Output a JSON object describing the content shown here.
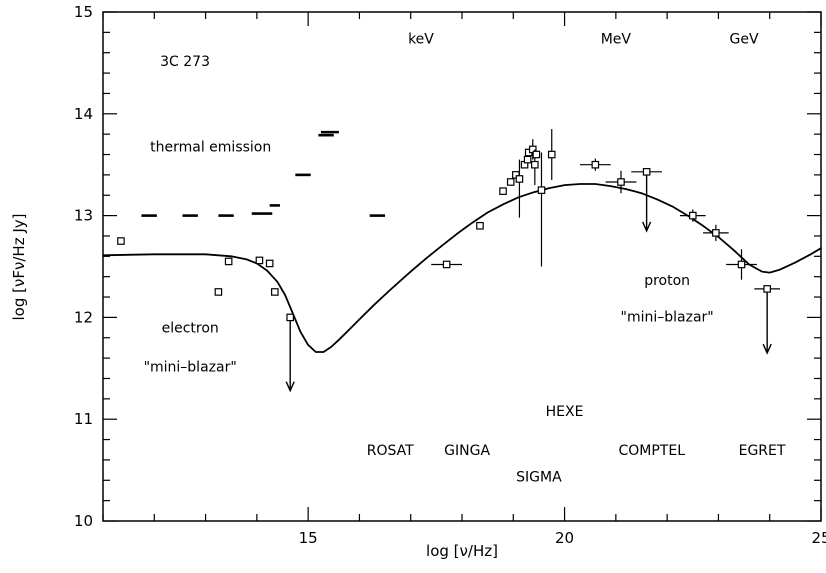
{
  "chart_data": {
    "type": "scatter",
    "xlabel": "log [ν/Hz]",
    "ylabel": "log [νFν/Hz Jy]",
    "xlim": [
      11,
      25
    ],
    "ylim": [
      10,
      15
    ],
    "x_ticks": [
      15,
      20,
      25
    ],
    "y_ticks": [
      10,
      11,
      12,
      13,
      14,
      15
    ],
    "x_tick_labels": [
      "15",
      "20",
      "25"
    ],
    "y_tick_labels": [
      "10",
      "11",
      "12",
      "13",
      "14",
      "15"
    ],
    "grid": false,
    "annotations": [
      {
        "text": "3C 273",
        "x": 12.6,
        "y": 14.47
      },
      {
        "text": "thermal emission",
        "x": 13.1,
        "y": 13.63
      },
      {
        "text": "electron",
        "x": 12.7,
        "y": 11.85
      },
      {
        "text": "\"mini–blazar\"",
        "x": 12.7,
        "y": 11.47
      },
      {
        "text": "proton",
        "x": 22.0,
        "y": 12.32
      },
      {
        "text": "\"mini–blazar\"",
        "x": 22.0,
        "y": 11.96
      },
      {
        "text": "keV",
        "x": 17.2,
        "y": 14.69
      },
      {
        "text": "MeV",
        "x": 21.0,
        "y": 14.69
      },
      {
        "text": "GeV",
        "x": 23.5,
        "y": 14.69
      },
      {
        "text": "HEXE",
        "x": 20.0,
        "y": 11.03
      },
      {
        "text": "ROSAT",
        "x": 16.6,
        "y": 10.65
      },
      {
        "text": "GINGA",
        "x": 18.1,
        "y": 10.65
      },
      {
        "text": "COMPTEL",
        "x": 21.7,
        "y": 10.65
      },
      {
        "text": "EGRET",
        "x": 23.85,
        "y": 10.65
      },
      {
        "text": "SIGMA",
        "x": 19.5,
        "y": 10.39
      }
    ],
    "thermal_bars": [
      {
        "x0": 11.75,
        "x1": 12.05,
        "y": 13.0
      },
      {
        "x0": 12.55,
        "x1": 12.85,
        "y": 13.0
      },
      {
        "x0": 13.25,
        "x1": 13.55,
        "y": 13.0
      },
      {
        "x0": 13.9,
        "x1": 14.3,
        "y": 13.02
      },
      {
        "x0": 14.25,
        "x1": 14.45,
        "y": 13.1
      },
      {
        "x0": 14.75,
        "x1": 15.05,
        "y": 13.4
      },
      {
        "x0": 15.25,
        "x1": 15.6,
        "y": 13.82
      },
      {
        "x0": 15.2,
        "x1": 15.5,
        "y": 13.79
      },
      {
        "x0": 16.2,
        "x1": 16.5,
        "y": 13.0
      }
    ],
    "points": [
      {
        "x": 11.35,
        "y": 12.75
      },
      {
        "x": 13.25,
        "y": 12.25
      },
      {
        "x": 13.45,
        "y": 12.55
      },
      {
        "x": 14.05,
        "y": 12.56
      },
      {
        "x": 14.25,
        "y": 12.53
      },
      {
        "x": 14.35,
        "y": 12.25
      },
      {
        "x": 14.65,
        "y": 12.0,
        "upper_limit_to": 11.28
      },
      {
        "x": 17.7,
        "y": 12.52,
        "xerr": 0.3
      },
      {
        "x": 18.35,
        "y": 12.9
      },
      {
        "x": 18.8,
        "y": 13.24
      },
      {
        "x": 18.95,
        "y": 13.33
      },
      {
        "x": 19.05,
        "y": 13.4
      },
      {
        "x": 19.12,
        "y": 13.36,
        "ylo": 12.98,
        "yhi": 13.55
      },
      {
        "x": 19.22,
        "y": 13.5
      },
      {
        "x": 19.28,
        "y": 13.55
      },
      {
        "x": 19.3,
        "y": 13.62
      },
      {
        "x": 19.38,
        "y": 13.65,
        "ylo": 13.55,
        "yhi": 13.75
      },
      {
        "x": 19.42,
        "y": 13.5,
        "ylo": 13.3,
        "yhi": 13.65
      },
      {
        "x": 19.45,
        "y": 13.6
      },
      {
        "x": 19.55,
        "y": 13.25,
        "ylo": 12.5,
        "yhi": 13.62
      },
      {
        "x": 19.75,
        "y": 13.6,
        "ylo": 13.35,
        "yhi": 13.85
      },
      {
        "x": 20.6,
        "y": 13.5,
        "xerr": 0.3,
        "ylo": 13.44,
        "yhi": 13.56
      },
      {
        "x": 21.1,
        "y": 13.33,
        "xerr": 0.3,
        "ylo": 13.22,
        "yhi": 13.44
      },
      {
        "x": 21.6,
        "y": 13.43,
        "xerr": 0.3,
        "upper_limit_to": 12.85
      },
      {
        "x": 22.5,
        "y": 13.0,
        "xerr": 0.25,
        "ylo": 12.94,
        "yhi": 13.06
      },
      {
        "x": 22.95,
        "y": 12.83,
        "xerr": 0.25,
        "ylo": 12.75,
        "yhi": 12.91
      },
      {
        "x": 23.45,
        "y": 12.52,
        "xerr": 0.3,
        "ylo": 12.37,
        "yhi": 12.67
      },
      {
        "x": 23.95,
        "y": 12.28,
        "xerr": 0.25,
        "upper_limit_to": 11.65
      }
    ],
    "model_curve": {
      "x": [
        11,
        12,
        12.5,
        13,
        13.5,
        13.8,
        14.0,
        14.2,
        14.4,
        14.55,
        14.7,
        14.85,
        15.0,
        15.15,
        15.3,
        15.45,
        15.6,
        15.8,
        16.0,
        16.3,
        16.6,
        17.0,
        17.3,
        17.6,
        17.9,
        18.2,
        18.5,
        18.8,
        19.1,
        19.4,
        19.7,
        20.0,
        20.3,
        20.6,
        20.9,
        21.2,
        21.5,
        21.8,
        22.1,
        22.4,
        22.7,
        23.0,
        23.3,
        23.6,
        23.85,
        24.0,
        24.2,
        24.5,
        24.8,
        25.0
      ],
      "y": [
        12.61,
        12.62,
        12.62,
        12.62,
        12.6,
        12.57,
        12.53,
        12.46,
        12.35,
        12.22,
        12.04,
        11.86,
        11.73,
        11.66,
        11.66,
        11.71,
        11.78,
        11.88,
        11.98,
        12.13,
        12.27,
        12.45,
        12.58,
        12.7,
        12.82,
        12.93,
        13.03,
        13.11,
        13.18,
        13.23,
        13.27,
        13.3,
        13.31,
        13.31,
        13.29,
        13.26,
        13.22,
        13.16,
        13.09,
        13.0,
        12.9,
        12.79,
        12.66,
        12.52,
        12.45,
        12.44,
        12.47,
        12.54,
        12.62,
        12.68
      ]
    }
  }
}
